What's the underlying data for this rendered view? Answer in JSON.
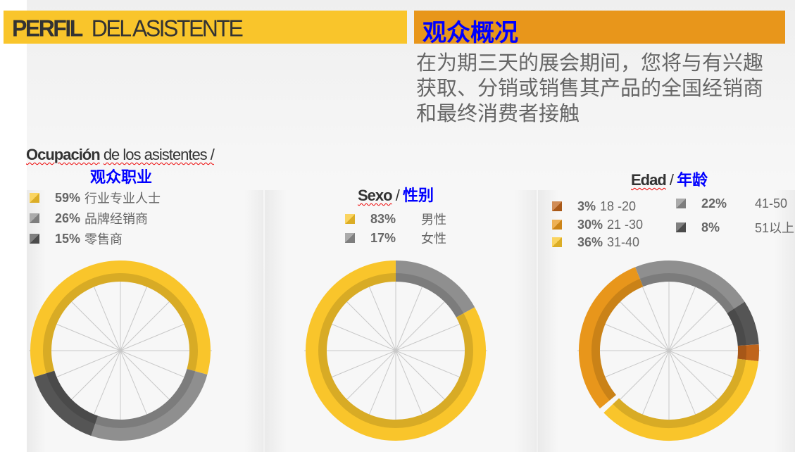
{
  "header": {
    "left_title_bold": "PERFIL",
    "left_title_rest": "DEL ASISTENTE",
    "right_title": "观众概况",
    "description": "在为期三天的展会期间，您将与有兴趣获取、分销或销售其产品的全国经销商和最终消费者接触"
  },
  "colors": {
    "yellow": "#f9c52b",
    "orange": "#e8961b",
    "brown": "#c0651c",
    "grey": "#8f8f8f",
    "dark_grey": "#555555",
    "accent_blue": "#0000ff"
  },
  "chart_data": [
    {
      "type": "pie",
      "donut": true,
      "title_es_bold": "Ocupación",
      "title_es_rest": "de los asistentes /",
      "title_cn": "观众职业",
      "slices": [
        {
          "percent": 59,
          "label": "行业专业人士",
          "color": "#f9c52b"
        },
        {
          "percent": 26,
          "label": "品牌经销商",
          "color": "#8f8f8f"
        },
        {
          "percent": 15,
          "label": "零售商",
          "color": "#555555"
        }
      ]
    },
    {
      "type": "pie",
      "donut": true,
      "title_es_bold": "Sexo",
      "title_cn": "性别",
      "slices": [
        {
          "percent": 83,
          "label": "男性",
          "color": "#f9c52b"
        },
        {
          "percent": 17,
          "label": "女性",
          "color": "#8f8f8f"
        }
      ]
    },
    {
      "type": "pie",
      "donut": true,
      "title_es_bold": "Edad",
      "title_cn": "年龄",
      "slices": [
        {
          "percent": 3,
          "label": "18 -20",
          "color": "#c0651c"
        },
        {
          "percent": 30,
          "label": "21 -30",
          "color": "#e8961b"
        },
        {
          "percent": 36,
          "label": "31-40",
          "color": "#f9c52b"
        },
        {
          "percent": 22,
          "label": "41-50",
          "color": "#8f8f8f"
        },
        {
          "percent": 8,
          "label": "51以上",
          "color": "#555555"
        }
      ]
    }
  ]
}
